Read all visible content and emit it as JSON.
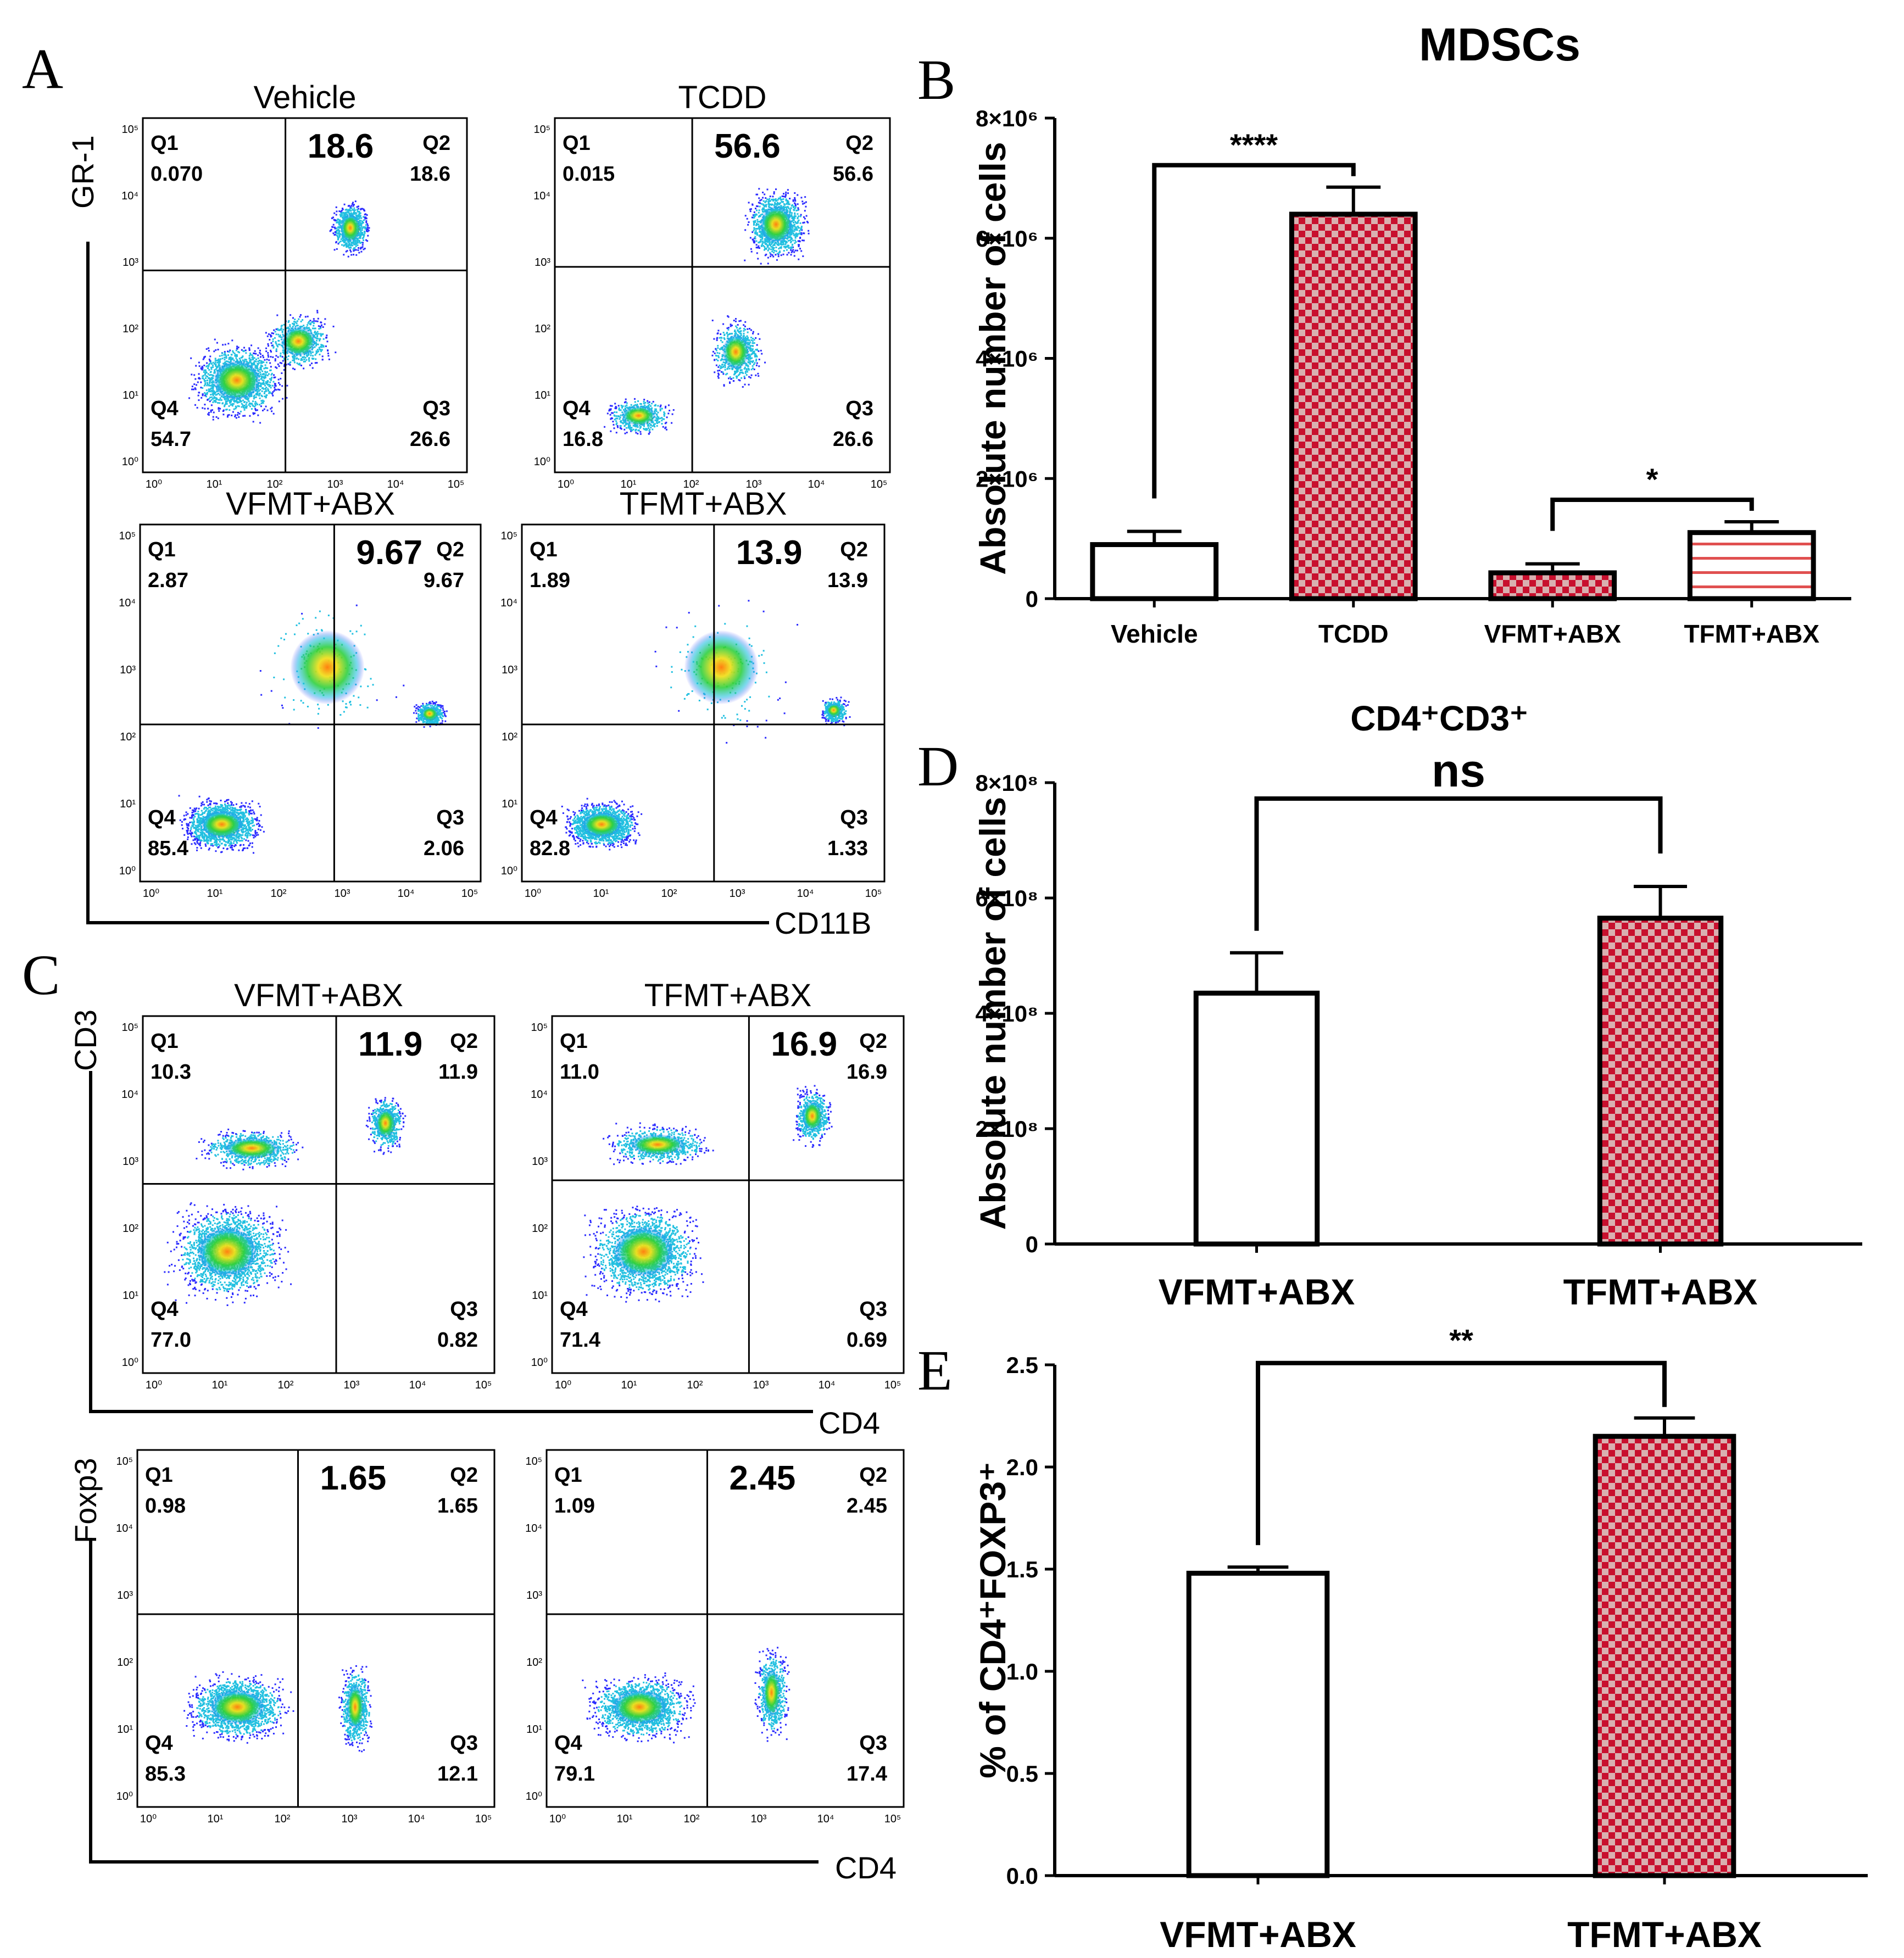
{
  "figure": {
    "panel_letters": [
      "A",
      "B",
      "C",
      "D",
      "E"
    ],
    "facs": {
      "A": {
        "y_axis_label": "GR-1",
        "x_axis_label": "CD11B",
        "plots": [
          {
            "title": "Vehicle",
            "q1": "0.070",
            "q2": "18.6",
            "q3": "26.6",
            "q4": "54.7",
            "highlight": "18.6"
          },
          {
            "title": "TCDD",
            "q1": "0.015",
            "q2": "56.6",
            "q3": "26.6",
            "q4": "16.8",
            "highlight": "56.6"
          },
          {
            "title": "VFMT+ABX",
            "q1": "2.87",
            "q2": "9.67",
            "q3": "2.06",
            "q4": "85.4",
            "highlight": "9.67"
          },
          {
            "title": "TFMT+ABX",
            "q1": "1.89",
            "q2": "13.9",
            "q3": "1.33",
            "q4": "82.8",
            "highlight": "13.9"
          }
        ]
      },
      "C_top": {
        "y_axis_label": "CD3",
        "x_axis_label": "CD4",
        "plots": [
          {
            "title": "VFMT+ABX",
            "q1": "10.3",
            "q2": "11.9",
            "q3": "0.82",
            "q4": "77.0",
            "highlight": "11.9"
          },
          {
            "title": "TFMT+ABX",
            "q1": "11.0",
            "q2": "16.9",
            "q3": "0.69",
            "q4": "71.4",
            "highlight": "16.9"
          }
        ]
      },
      "C_bottom": {
        "y_axis_label": "Foxp3",
        "x_axis_label": "CD4",
        "plots": [
          {
            "title": "",
            "q1": "0.98",
            "q2": "1.65",
            "q3": "12.1",
            "q4": "85.3",
            "highlight": "1.65"
          },
          {
            "title": "",
            "q1": "1.09",
            "q2": "2.45",
            "q3": "17.4",
            "q4": "79.1",
            "highlight": "2.45"
          }
        ]
      },
      "quadrant_names": [
        "Q1",
        "Q2",
        "Q3",
        "Q4"
      ],
      "log_ticks": [
        "10⁰",
        "10¹",
        "10²",
        "10³",
        "10⁴",
        "10⁵"
      ]
    }
  },
  "chart_data": [
    {
      "id": "B",
      "type": "bar",
      "title": "MDSCs",
      "ylabel": "Absolute number of cells",
      "xlabel": "",
      "categories": [
        "Vehicle",
        "TCDD",
        "VFMT+ABX",
        "TFMT+ABX"
      ],
      "values": [
        900000,
        6400000,
        430000,
        1100000
      ],
      "errors": [
        220000,
        450000,
        150000,
        180000
      ],
      "patterns": [
        "white",
        "red-check",
        "red-check",
        "red-stripe"
      ],
      "ylim": [
        0,
        8000000
      ],
      "yticks": [
        0,
        2000000,
        4000000,
        6000000,
        8000000
      ],
      "ytick_labels": [
        "0",
        "2×10⁶",
        "4×10⁶",
        "6×10⁶",
        "8×10⁶"
      ],
      "significance": [
        {
          "groups": [
            0,
            1
          ],
          "label": "****"
        },
        {
          "groups": [
            2,
            3
          ],
          "label": "*"
        }
      ]
    },
    {
      "id": "D",
      "type": "bar",
      "title": "CD4⁺CD3⁺",
      "ylabel": "Absolute number of cells",
      "xlabel": "",
      "categories": [
        "VFMT+ABX",
        "TFMT+ABX"
      ],
      "values": [
        435000000,
        565000000
      ],
      "errors": [
        70000000,
        55000000
      ],
      "patterns": [
        "white",
        "red-check"
      ],
      "ylim": [
        0,
        800000000
      ],
      "yticks": [
        0,
        200000000,
        400000000,
        600000000,
        800000000
      ],
      "ytick_labels": [
        "0",
        "2×10⁸",
        "4×10⁸",
        "6×10⁸",
        "8×10⁸"
      ],
      "significance": [
        {
          "groups": [
            0,
            1
          ],
          "label": "ns"
        }
      ]
    },
    {
      "id": "E",
      "type": "bar",
      "title": "",
      "ylabel": "% of CD4⁺FOXP3⁺",
      "xlabel": "",
      "categories": [
        "VFMT+ABX",
        "TFMT+ABX"
      ],
      "values": [
        1.48,
        2.15
      ],
      "errors": [
        0.03,
        0.09
      ],
      "patterns": [
        "white",
        "red-check"
      ],
      "ylim": [
        0,
        2.5
      ],
      "yticks": [
        0,
        0.5,
        1.0,
        1.5,
        2.0,
        2.5
      ],
      "ytick_labels": [
        "0.0",
        "0.5",
        "1.0",
        "1.5",
        "2.0",
        "2.5"
      ],
      "significance": [
        {
          "groups": [
            0,
            1
          ],
          "label": "**"
        }
      ]
    }
  ],
  "colors": {
    "bar_red": "#c8102e",
    "check_light": "#d9b0b0",
    "stripe_red": "#e05050",
    "dot_blue": "#2b2bff",
    "dot_cyan": "#22c0e0",
    "dot_green": "#30d040",
    "dot_yellow": "#f0e020",
    "dot_orange": "#ff8010"
  }
}
